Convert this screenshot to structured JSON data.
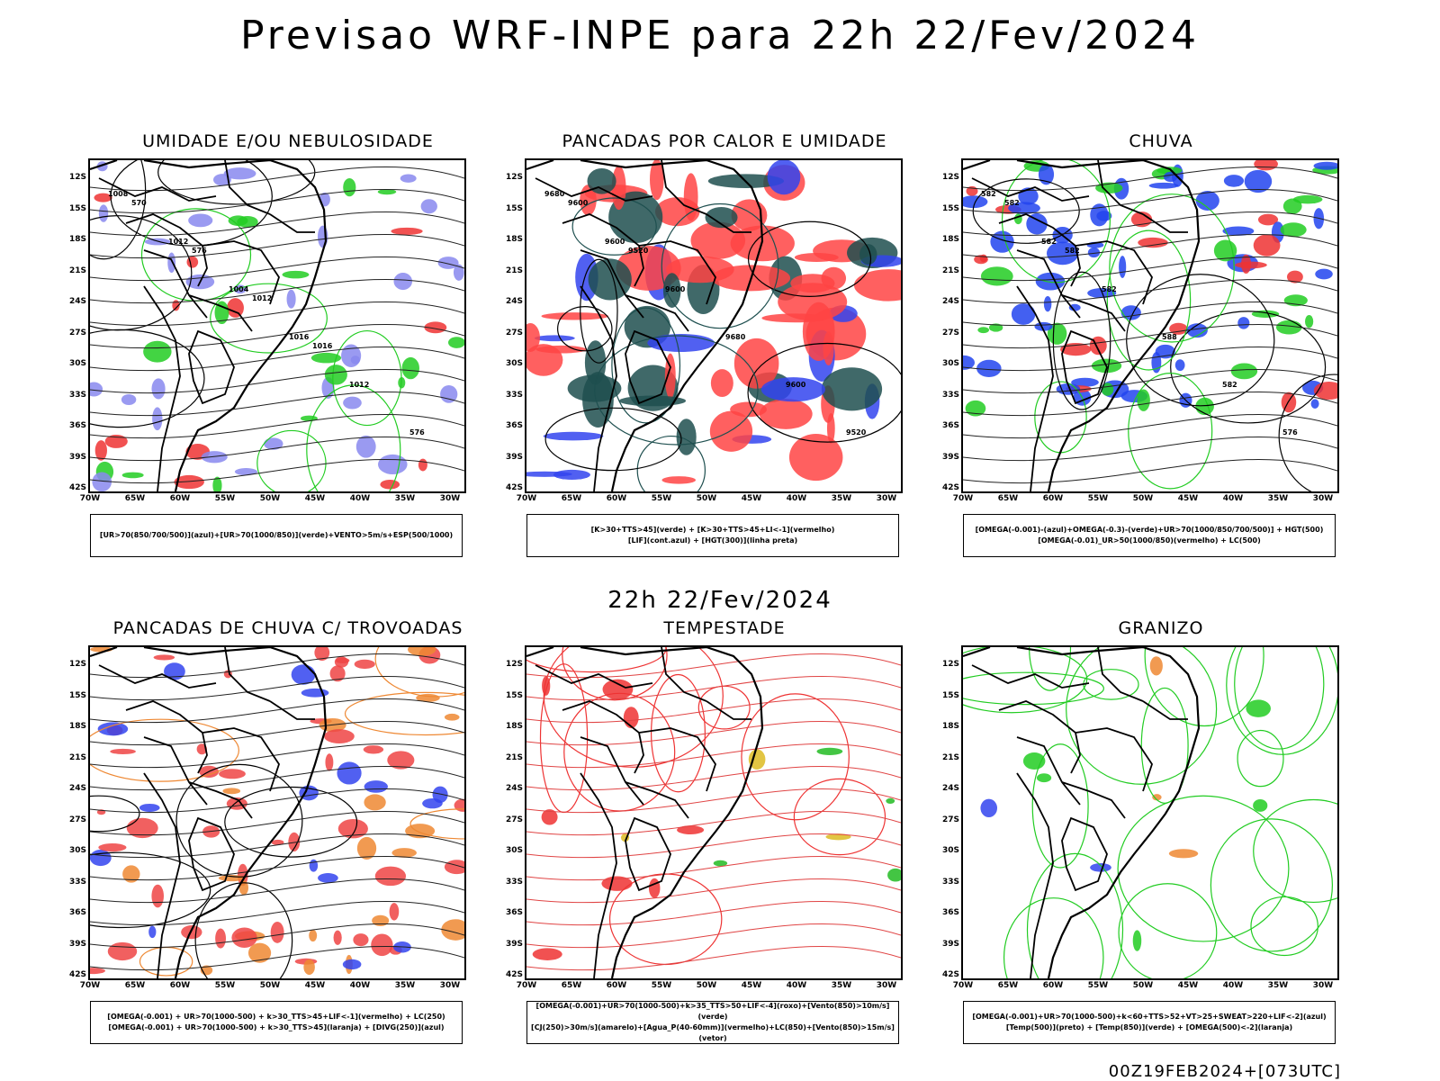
{
  "header": {
    "title": "Previsao WRF-INPE  para 22h 22/Fev/2024"
  },
  "mid_title": "22h 22/Fev/2024",
  "footer": "00Z19FEB2024+[073UTC]",
  "axes": {
    "lat": [
      "12S",
      "15S",
      "18S",
      "21S",
      "24S",
      "27S",
      "30S",
      "33S",
      "36S",
      "39S",
      "42S"
    ],
    "lon": [
      "70W",
      "65W",
      "60W",
      "55W",
      "50W",
      "45W",
      "40W",
      "35W",
      "30W"
    ]
  },
  "panels": [
    {
      "title": "UMIDADE E/OU NEBULOSIDADE",
      "legend": [
        "[UR>70(850/700/500)](azul)+[UR>70(1000/850)](verde)+VENTO>5m/s+ESP(500/1000)"
      ],
      "contour_labels": [
        "1008",
        "1012",
        "1004",
        "1016",
        "1012",
        "576",
        "570",
        "576",
        "1012",
        "1016"
      ],
      "colors": {
        "primary": "#8888ee",
        "secondary": "#22cc22",
        "tertiary": "#ee3333"
      }
    },
    {
      "title": "PANCADAS POR CALOR E UMIDADE",
      "legend": [
        "[K>30+TTS>45](verde) + [K>30+TTS>45+LI<-1](vermelho)",
        "[LIF](cont.azul) + [HGT(300)](linha preta)"
      ],
      "contour_labels": [
        "9680",
        "9600",
        "9600",
        "9680",
        "9600",
        "9520",
        "9600",
        "9520"
      ],
      "colors": {
        "primary": "#ff4444",
        "secondary": "#1e4f4f",
        "tertiary": "#3344ee"
      }
    },
    {
      "title": "CHUVA",
      "legend": [
        "[OMEGA(-0.001)-(azul)+OMEGA(-0.3)-(verde)+UR>70(1000/850/700/500)] + HGT(500)",
        "[OMEGA(-0.01)_UR>50(1000/850)(vermelho) + LC(500)"
      ],
      "contour_labels": [
        "582",
        "582",
        "582",
        "588",
        "582",
        "576",
        "582",
        "582"
      ],
      "colors": {
        "primary": "#2244ee",
        "secondary": "#22cc22",
        "tertiary": "#ee3333"
      }
    },
    {
      "title": "PANCADAS DE CHUVA C/ TROVOADAS",
      "legend": [
        "[OMEGA(-0.001) + UR>70(1000-500) + k>30_TTS>45+LIF<-1](vermelho) + LC(250)",
        "[OMEGA(-0.001) + UR>70(1000-500) + k>30_TTS>45](laranja) + [DIVG(250)](azul)"
      ],
      "contour_labels": [],
      "colors": {
        "primary": "#ee4444",
        "secondary": "#ee8833",
        "tertiary": "#3344ee"
      }
    },
    {
      "title": "TEMPESTADE",
      "legend": [
        "[OMEGA(-0.001)+UR>70(1000-500)+k>35_TTS>50+LIF<-4](roxo)+[Vento(850)>10m/s](verde)",
        "[CJ(250)>30m/s](amarelo)+[Agua_P(40-60mm)](vermelho)+LC(850)+[Vento(850)>15m/s](vetor)"
      ],
      "contour_labels": [],
      "colors": {
        "primary": "#ee3333",
        "secondary": "#22bb22",
        "tertiary": "#ddbb22"
      }
    },
    {
      "title": "GRANIZO",
      "legend": [
        "[OMEGA(-0.001)+UR>70(1000-500)+k<60+TTS>52+VT>25+SWEAT>220+LIF<-2](azul)",
        "[Temp(500)](preto) + [Temp(850)](verde) + [OMEGA(500)<-2](laranja)"
      ],
      "contour_labels": [],
      "colors": {
        "primary": "#22cc22",
        "secondary": "#ee8833",
        "tertiary": "#3344ee"
      }
    }
  ]
}
